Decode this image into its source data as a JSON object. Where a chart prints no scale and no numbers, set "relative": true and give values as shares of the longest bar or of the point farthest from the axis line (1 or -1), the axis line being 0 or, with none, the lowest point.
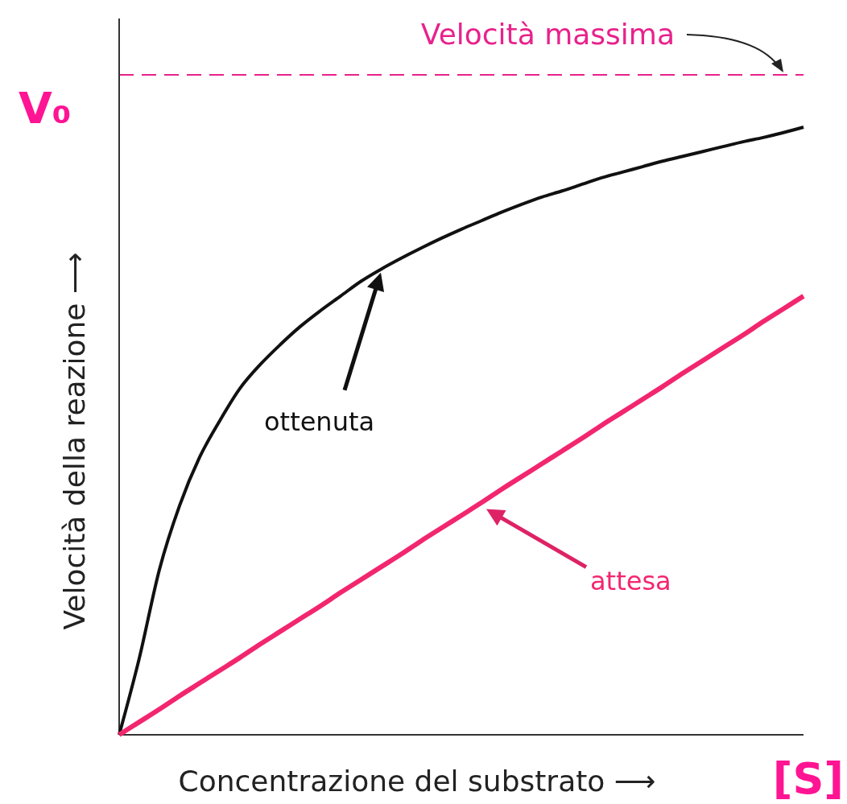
{
  "chart_data": {
    "type": "line",
    "relative": true,
    "xlabel": "Concentrazione del substrato ⟶",
    "ylabel": "Velocità della reazione ⟶",
    "categories": [
      null,
      null,
      null,
      null,
      null,
      null,
      null,
      null,
      null,
      null,
      null,
      null,
      null,
      null,
      null,
      null,
      null,
      null,
      null,
      null,
      null,
      null,
      null,
      null,
      null,
      null,
      null,
      null,
      null,
      null,
      null,
      null,
      null,
      null,
      null
    ],
    "series": [
      {
        "name": "ottenuta",
        "color": "#111111",
        "values": [
          0,
          0.126,
          0.272,
          0.377,
          0.457,
          0.517,
          0.57,
          0.609,
          0.642,
          0.672,
          0.698,
          0.722,
          0.746,
          0.766,
          0.784,
          0.801,
          0.817,
          0.832,
          0.846,
          0.86,
          0.873,
          0.885,
          0.895,
          0.906,
          0.917,
          0.926,
          0.935,
          0.944,
          0.952,
          0.96,
          0.968,
          0.976,
          0.983,
          0.991,
          1
        ]
      },
      {
        "name": "attesa",
        "color": "#f2266f",
        "values": [
          0,
          0.021,
          0.042,
          0.064,
          0.085,
          0.106,
          0.127,
          0.149,
          0.17,
          0.191,
          0.212,
          0.234,
          0.255,
          0.276,
          0.297,
          0.319,
          0.34,
          0.361,
          0.382,
          0.404,
          0.425,
          0.446,
          0.467,
          0.488,
          0.51,
          0.531,
          0.552,
          0.573,
          0.595,
          0.616,
          0.637,
          0.658,
          0.68,
          0.701,
          0.722
        ]
      }
    ],
    "ref_lines": [
      {
        "axis": "y",
        "value": 1.086,
        "label": "Velocità massima",
        "color": "#e8218c",
        "line_style": "dashed"
      }
    ],
    "annotations": [
      "V₀",
      "[S]"
    ],
    "marker": "none",
    "line_style": "solid"
  }
}
